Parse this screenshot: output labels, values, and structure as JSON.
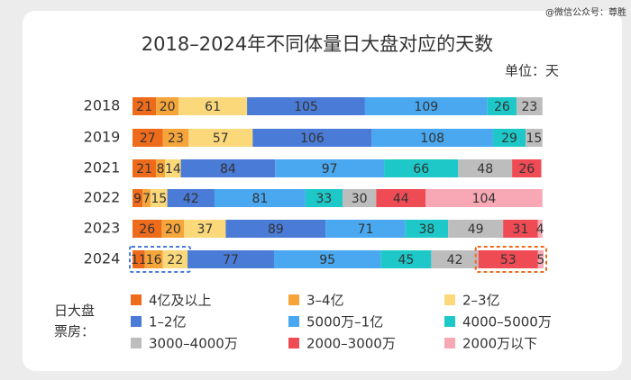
{
  "chart_data": {
    "type": "stacked-bar-horizontal",
    "title": "2018–2024年不同体量日大盘对应的天数",
    "unit": "单位：天",
    "watermark": "@微信公众号：尊胜",
    "legend_title": "日大盘票房：",
    "categories": [
      "2018",
      "2019",
      "2021",
      "2022",
      "2023",
      "2024"
    ],
    "series": [
      {
        "name": "4亿及以上",
        "color": "#ee6b1c",
        "values": [
          21,
          27,
          21,
          9,
          26,
          11
        ]
      },
      {
        "name": "3–4亿",
        "color": "#f5a53a",
        "values": [
          20,
          23,
          8,
          7,
          20,
          16
        ]
      },
      {
        "name": "2–3亿",
        "color": "#fbd97b",
        "values": [
          61,
          57,
          14,
          15,
          37,
          22
        ]
      },
      {
        "name": "1–2亿",
        "color": "#4a7bd6",
        "values": [
          105,
          106,
          84,
          42,
          89,
          77
        ]
      },
      {
        "name": "5000万–1亿",
        "color": "#4aa8f0",
        "values": [
          109,
          108,
          97,
          81,
          71,
          95
        ]
      },
      {
        "name": "4000–5000万",
        "color": "#1ec8c8",
        "values": [
          26,
          29,
          66,
          33,
          38,
          45
        ]
      },
      {
        "name": "3000–4000万",
        "color": "#bdbdbd",
        "values": [
          23,
          15,
          48,
          30,
          49,
          42
        ]
      },
      {
        "name": "2000–3000万",
        "color": "#ee4b55",
        "values": [
          null,
          null,
          26,
          44,
          31,
          53
        ]
      },
      {
        "name": "2000万以下",
        "color": "#f7a8b4",
        "values": [
          null,
          null,
          null,
          104,
          4,
          5
        ]
      }
    ]
  }
}
